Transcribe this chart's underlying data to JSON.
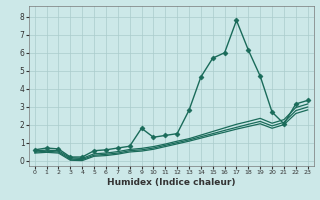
{
  "title": "",
  "xlabel": "Humidex (Indice chaleur)",
  "background_color": "#cce8e8",
  "grid_color": "#aacccc",
  "line_color": "#1a6b5a",
  "xlim": [
    -0.5,
    23.5
  ],
  "ylim": [
    -0.3,
    8.6
  ],
  "xticks": [
    0,
    1,
    2,
    3,
    4,
    5,
    6,
    7,
    8,
    9,
    10,
    11,
    12,
    13,
    14,
    15,
    16,
    17,
    18,
    19,
    20,
    21,
    22,
    23
  ],
  "yticks": [
    0,
    1,
    2,
    3,
    4,
    5,
    6,
    7,
    8
  ],
  "series": [
    {
      "x": [
        0,
        1,
        2,
        3,
        4,
        5,
        6,
        7,
        8,
        9,
        10,
        11,
        12,
        13,
        14,
        15,
        16,
        17,
        18,
        19,
        20,
        21,
        22,
        23
      ],
      "y": [
        0.6,
        0.7,
        0.65,
        0.2,
        0.2,
        0.55,
        0.6,
        0.7,
        0.8,
        1.8,
        1.3,
        1.4,
        1.5,
        2.8,
        4.65,
        5.7,
        6.0,
        7.8,
        6.15,
        4.7,
        2.7,
        2.05,
        3.15,
        3.35
      ],
      "marker": "D",
      "markersize": 2.5,
      "linewidth": 1.0
    },
    {
      "x": [
        0,
        1,
        2,
        3,
        4,
        5,
        6,
        7,
        8,
        9,
        10,
        11,
        12,
        13,
        14,
        15,
        16,
        17,
        18,
        19,
        20,
        21,
        22,
        23
      ],
      "y": [
        0.55,
        0.58,
        0.55,
        0.15,
        0.12,
        0.38,
        0.42,
        0.5,
        0.62,
        0.68,
        0.78,
        0.92,
        1.08,
        1.22,
        1.42,
        1.62,
        1.82,
        2.02,
        2.18,
        2.35,
        2.08,
        2.28,
        2.95,
        3.15
      ],
      "marker": null,
      "markersize": 0,
      "linewidth": 0.9
    },
    {
      "x": [
        0,
        1,
        2,
        3,
        4,
        5,
        6,
        7,
        8,
        9,
        10,
        11,
        12,
        13,
        14,
        15,
        16,
        17,
        18,
        19,
        20,
        21,
        22,
        23
      ],
      "y": [
        0.48,
        0.52,
        0.48,
        0.08,
        0.06,
        0.3,
        0.35,
        0.42,
        0.55,
        0.6,
        0.7,
        0.85,
        1.0,
        1.15,
        1.33,
        1.5,
        1.68,
        1.85,
        2.02,
        2.18,
        1.93,
        2.13,
        2.78,
        2.98
      ],
      "marker": null,
      "markersize": 0,
      "linewidth": 0.9
    },
    {
      "x": [
        0,
        1,
        2,
        3,
        4,
        5,
        6,
        7,
        8,
        9,
        10,
        11,
        12,
        13,
        14,
        15,
        16,
        17,
        18,
        19,
        20,
        21,
        22,
        23
      ],
      "y": [
        0.42,
        0.46,
        0.42,
        0.02,
        0.0,
        0.24,
        0.28,
        0.36,
        0.48,
        0.53,
        0.63,
        0.78,
        0.93,
        1.08,
        1.25,
        1.42,
        1.58,
        1.75,
        1.9,
        2.05,
        1.8,
        2.0,
        2.62,
        2.82
      ],
      "marker": null,
      "markersize": 0,
      "linewidth": 0.9
    }
  ],
  "tick_fontsize_x": 4.5,
  "tick_fontsize_y": 5.5,
  "xlabel_fontsize": 6.5
}
